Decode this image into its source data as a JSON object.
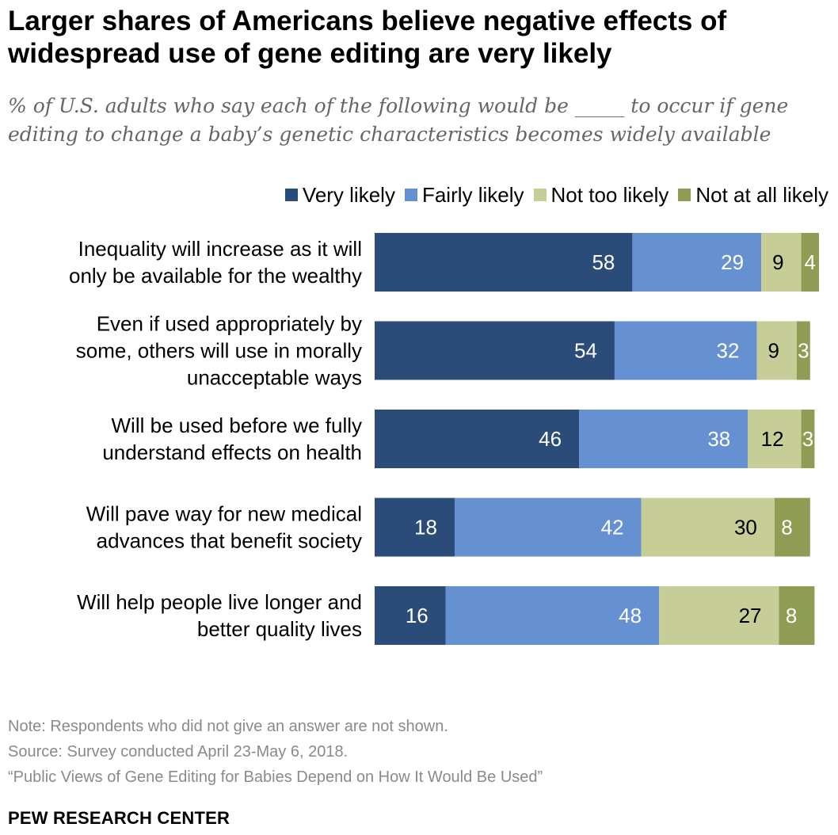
{
  "chart_data": {
    "type": "bar",
    "orientation": "horizontal",
    "stacked": true,
    "title": "Larger shares of Americans believe negative effects of widespread use of gene editing are very likely",
    "subtitle": "% of U.S. adults who say each of the following would be _____ to occur if gene editing to change a baby’s genetic characteristics becomes widely available",
    "categories": [
      [
        "Inequality will increase as it will",
        "only be available for the wealthy"
      ],
      [
        "Even if used appropriately by",
        "some, others will use in morally",
        "unacceptable ways"
      ],
      [
        "Will be used before we fully",
        "understand effects on health"
      ],
      [
        "Will pave way for new medical",
        "advances that benefit society"
      ],
      [
        "Will help people live longer and",
        "better quality lives"
      ]
    ],
    "series": [
      {
        "name": "Very likely",
        "color": "#2b4b78",
        "label_color": "#ffffff",
        "values": [
          58,
          54,
          46,
          18,
          16
        ]
      },
      {
        "name": "Fairly likely",
        "color": "#6590d1",
        "label_color": "#ffffff",
        "values": [
          29,
          32,
          38,
          42,
          48
        ]
      },
      {
        "name": "Not too likely",
        "color": "#c7cd97",
        "label_color": "#000000",
        "values": [
          9,
          9,
          12,
          30,
          27
        ]
      },
      {
        "name": "Not at all likely",
        "color": "#8f9c53",
        "label_color": "#ffffff",
        "values": [
          4,
          3,
          3,
          8,
          8
        ]
      }
    ],
    "xlim": [
      0,
      100
    ],
    "grid": false,
    "legend": "top-right"
  },
  "footer": {
    "note": "Note: Respondents who did not give an answer are not shown.",
    "source": "Source: Survey conducted April 23-May 6, 2018.",
    "report": "“Public Views of Gene Editing for Babies Depend on How It Would Be Used”",
    "brand": "PEW RESEARCH CENTER"
  }
}
